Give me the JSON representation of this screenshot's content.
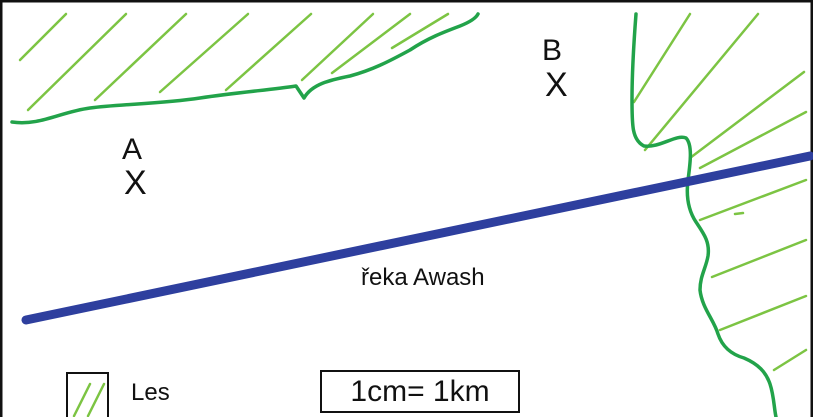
{
  "map": {
    "legend": {
      "label": "Les"
    },
    "scale": "1cm= 1km",
    "river": {
      "label": "řeka Awash"
    },
    "points": [
      {
        "label": "A",
        "marker": "X"
      },
      {
        "label": "B",
        "marker": "X"
      }
    ],
    "colors": {
      "forest": "#22a34a",
      "forest_hatch": "#7cc443",
      "river": "#2e3f9e",
      "frame": "#111111"
    }
  }
}
